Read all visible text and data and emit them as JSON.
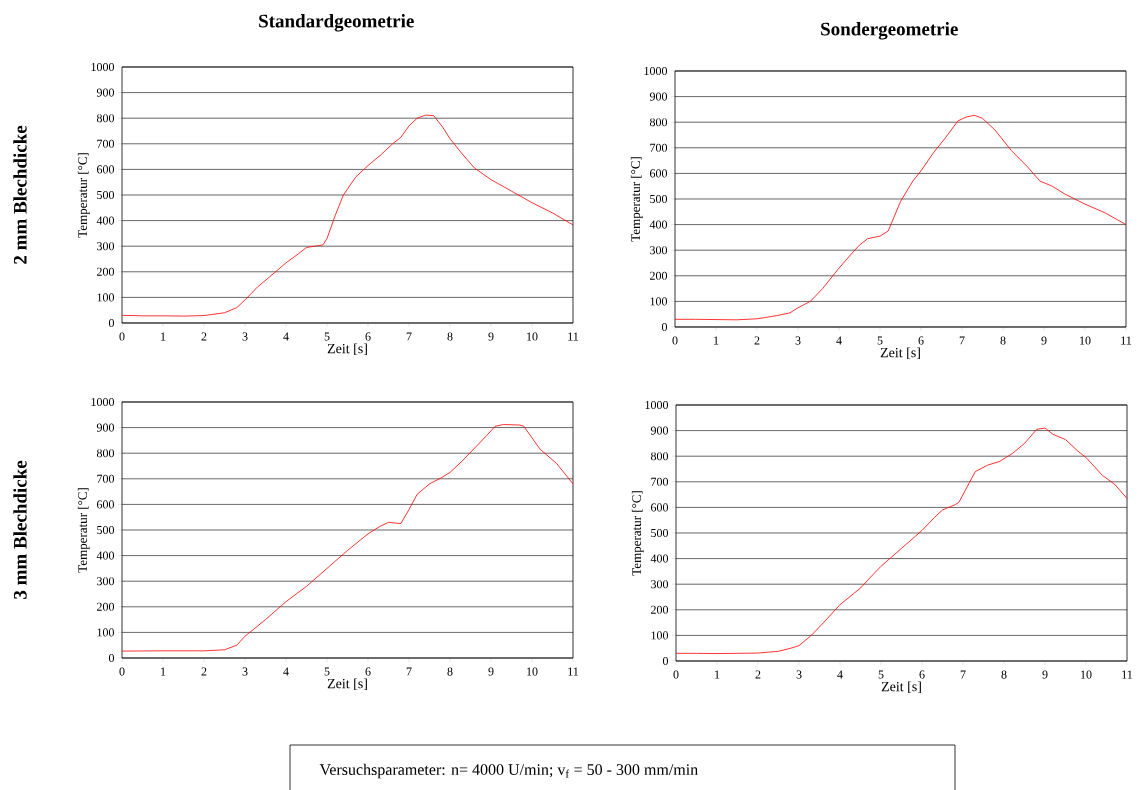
{
  "chart_data": [
    {
      "type": "line",
      "title": "Standardgeometrie",
      "xlabel": "Zeit [s]",
      "ylabel": "Temperatur [°C]",
      "annotations": [
        "2 mm Blechdicke"
      ],
      "xlim": [
        0,
        11
      ],
      "ylim": [
        0,
        1000
      ],
      "xticks": [
        0,
        1,
        2,
        3,
        4,
        5,
        6,
        7,
        8,
        9,
        10,
        11
      ],
      "yticks": [
        0,
        100,
        200,
        300,
        400,
        500,
        600,
        700,
        800,
        900,
        1000
      ],
      "grid": "y",
      "line_style": "solid",
      "series": [
        {
          "color": "#ff0000",
          "x": [
            0,
            0.5,
            1,
            1.5,
            2,
            2.5,
            2.8,
            3,
            3.3,
            3.6,
            4,
            4.3,
            4.5,
            4.9,
            5,
            5.2,
            5.4,
            5.7,
            6,
            6.3,
            6.6,
            6.8,
            7,
            7.2,
            7.4,
            7.6,
            7.8,
            8,
            8.3,
            8.6,
            9,
            9.5,
            10,
            10.5,
            11
          ],
          "values": [
            30,
            28,
            28,
            27,
            29,
            40,
            60,
            90,
            140,
            180,
            235,
            270,
            295,
            305,
            330,
            420,
            500,
            570,
            615,
            655,
            700,
            725,
            770,
            800,
            812,
            810,
            770,
            720,
            660,
            605,
            560,
            515,
            470,
            430,
            383
          ]
        }
      ]
    },
    {
      "type": "line",
      "title": "Sondergeometrie",
      "xlabel": "Zeit [s]",
      "ylabel": "Temperatur [°C]",
      "xlim": [
        0,
        11
      ],
      "ylim": [
        0,
        1000
      ],
      "xticks": [
        0,
        1,
        2,
        3,
        4,
        5,
        6,
        7,
        8,
        9,
        10,
        11
      ],
      "yticks": [
        0,
        100,
        200,
        300,
        400,
        500,
        600,
        700,
        800,
        900,
        1000
      ],
      "grid": "y",
      "line_style": "solid",
      "series": [
        {
          "color": "#ff0000",
          "x": [
            0,
            0.5,
            1,
            1.5,
            2,
            2.5,
            2.8,
            3,
            3.3,
            3.6,
            4,
            4.3,
            4.5,
            4.7,
            5,
            5.2,
            5.5,
            5.8,
            6,
            6.3,
            6.6,
            6.9,
            7.1,
            7.3,
            7.5,
            7.8,
            8.2,
            8.6,
            8.9,
            9.2,
            9.5,
            10,
            10.5,
            11
          ],
          "values": [
            30,
            30,
            29,
            28,
            32,
            45,
            55,
            75,
            100,
            150,
            230,
            285,
            320,
            345,
            355,
            375,
            490,
            570,
            610,
            680,
            740,
            805,
            820,
            827,
            815,
            770,
            690,
            625,
            570,
            550,
            520,
            480,
            445,
            400
          ]
        }
      ]
    },
    {
      "type": "line",
      "xlabel": "Zeit [s]",
      "ylabel": "Temperatur [°C]",
      "annotations": [
        "3 mm Blechdicke"
      ],
      "xlim": [
        0,
        11
      ],
      "ylim": [
        0,
        1000
      ],
      "xticks": [
        0,
        1,
        2,
        3,
        4,
        5,
        6,
        7,
        8,
        9,
        10,
        11
      ],
      "yticks": [
        0,
        100,
        200,
        300,
        400,
        500,
        600,
        700,
        800,
        900,
        1000
      ],
      "grid": "y",
      "line_style": "solid",
      "series": [
        {
          "color": "#ff0000",
          "x": [
            0,
            1,
            2,
            2.5,
            2.8,
            3,
            3.5,
            4,
            4.5,
            5,
            5.5,
            6,
            6.3,
            6.5,
            6.8,
            7,
            7.2,
            7.5,
            7.8,
            8,
            8.3,
            8.6,
            8.9,
            9.1,
            9.3,
            9.7,
            9.8,
            10,
            10.2,
            10.6,
            11
          ],
          "values": [
            27,
            28,
            28,
            32,
            50,
            85,
            150,
            220,
            280,
            350,
            420,
            485,
            515,
            530,
            525,
            580,
            640,
            680,
            705,
            725,
            770,
            820,
            870,
            905,
            912,
            910,
            905,
            860,
            815,
            760,
            680
          ]
        }
      ]
    },
    {
      "type": "line",
      "xlabel": "Zeit [s]",
      "ylabel": "Temperatur [°C]",
      "annotations": [
        "Versuchsparameter: n= 4000 U/min; v$_{f}$ = 50 - 300 mm/min"
      ],
      "xlim": [
        0,
        11
      ],
      "ylim": [
        0,
        1000
      ],
      "xticks": [
        0,
        1,
        2,
        3,
        4,
        5,
        6,
        7,
        8,
        9,
        10,
        11
      ],
      "yticks": [
        0,
        100,
        200,
        300,
        400,
        500,
        600,
        700,
        800,
        900,
        1000
      ],
      "grid": "y",
      "line_style": "solid",
      "series": [
        {
          "color": "#ff0000",
          "x": [
            0,
            0.5,
            1,
            1.5,
            2,
            2.5,
            2.8,
            3,
            3.3,
            3.6,
            4,
            4.5,
            4.7,
            5,
            5.5,
            6,
            6.3,
            6.5,
            6.8,
            6.9,
            7.1,
            7.3,
            7.6,
            7.9,
            8.2,
            8.5,
            8.8,
            9,
            9.2,
            9.5,
            9.8,
            10,
            10.4,
            10.7,
            11
          ],
          "values": [
            30,
            30,
            29,
            30,
            31,
            38,
            50,
            60,
            100,
            150,
            220,
            285,
            320,
            370,
            440,
            510,
            560,
            590,
            610,
            620,
            680,
            740,
            765,
            780,
            810,
            850,
            905,
            910,
            885,
            865,
            820,
            795,
            725,
            690,
            635
          ]
        }
      ]
    }
  ]
}
